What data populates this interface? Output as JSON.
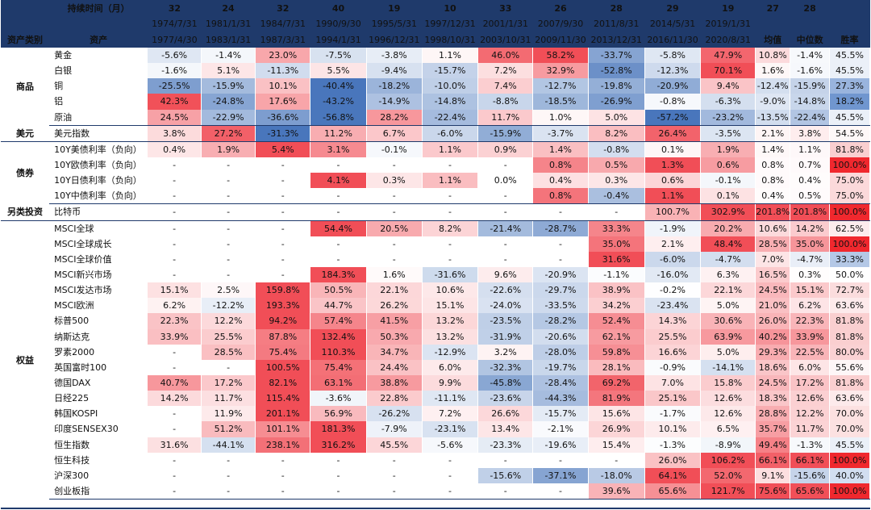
{
  "header": {
    "holding_label": "持续时间（月）",
    "asset_class_label": "资产类别",
    "asset_label": "资产",
    "durations": [
      "32",
      "24",
      "32",
      "40",
      "19",
      "10",
      "33",
      "26",
      "28",
      "29",
      "19"
    ],
    "start_dates": [
      "1974/7/31",
      "1981/1/31",
      "1984/7/31",
      "1990/9/30",
      "1995/5/31",
      "1997/12/31",
      "2001/1/31",
      "2007/9/30",
      "2011/8/31",
      "2014/5/31",
      "2019/1/31"
    ],
    "end_dates": [
      "1977/4/30",
      "1983/1/31",
      "1987/3/31",
      "1994/1/31",
      "1996/12/31",
      "1998/10/31",
      "2003/10/31",
      "2009/11/30",
      "2013/12/31",
      "2016/11/30",
      "2020/8/31"
    ],
    "stat_top": [
      "27",
      "28",
      ""
    ],
    "stat_labels": [
      "均值",
      "中位数",
      "胜率"
    ]
  },
  "groups": [
    {
      "name": "商品",
      "rows": [
        {
          "asset": "黄金",
          "values": [
            "-5.6%",
            "-1.4%",
            "23.0%",
            "-7.5%",
            "-3.8%",
            "1.1%",
            "46.0%",
            "58.2%",
            "-33.7%",
            "-5.8%",
            "47.9%"
          ],
          "stats": [
            "10.8%",
            "-1.4%",
            "45.5%"
          ]
        },
        {
          "asset": "白银",
          "values": [
            "-1.6%",
            "5.1%",
            "-11.3%",
            "5.5%",
            "-9.4%",
            "-15.7%",
            "7.2%",
            "32.9%",
            "-52.8%",
            "-12.3%",
            "70.1%"
          ],
          "stats": [
            "1.6%",
            "-1.6%",
            "45.5%"
          ]
        },
        {
          "asset": "铜",
          "values": [
            "-25.5%",
            "-15.9%",
            "10.1%",
            "-40.4%",
            "-18.2%",
            "-10.0%",
            "7.4%",
            "-12.7%",
            "-19.8%",
            "-20.9%",
            "9.4%"
          ],
          "stats": [
            "-12.4%",
            "-15.9%",
            "27.3%"
          ]
        },
        {
          "asset": "铝",
          "values": [
            "42.3%",
            "-24.8%",
            "17.6%",
            "-43.2%",
            "-14.9%",
            "-14.8%",
            "-8.8%",
            "-18.5%",
            "-26.9%",
            "-0.8%",
            "-6.3%"
          ],
          "stats": [
            "-9.0%",
            "-14.8%",
            "18.2%"
          ]
        },
        {
          "asset": "原油",
          "values": [
            "24.5%",
            "-22.9%",
            "-36.6%",
            "-56.8%",
            "28.2%",
            "-22.4%",
            "11.7%",
            "1.0%",
            "5.0%",
            "-57.2%",
            "-23.2%"
          ],
          "stats": [
            "-13.5%",
            "-22.4%",
            "45.5%"
          ]
        }
      ]
    },
    {
      "name": "美元",
      "rows": [
        {
          "asset": "美元指数",
          "values": [
            "3.8%",
            "27.2%",
            "-31.3%",
            "11.2%",
            "6.7%",
            "-6.0%",
            "-15.9%",
            "-3.7%",
            "8.2%",
            "26.4%",
            "-3.5%"
          ],
          "stats": [
            "2.1%",
            "3.8%",
            "54.5%"
          ]
        }
      ]
    },
    {
      "name": "债券",
      "rows": [
        {
          "asset": "10Y美债利率（负向）",
          "values": [
            "0.4%",
            "1.9%",
            "5.4%",
            "3.1%",
            "-0.1%",
            "1.1%",
            "0.9%",
            "1.4%",
            "-0.8%",
            "0.1%",
            "1.9%"
          ],
          "stats": [
            "1.4%",
            "1.1%",
            "81.8%"
          ]
        },
        {
          "asset": "10Y欧债利率（负向）",
          "values": [
            "-",
            "-",
            "-",
            "-",
            "-",
            "-",
            "-",
            "0.8%",
            "0.5%",
            "1.3%",
            "0.6%"
          ],
          "stats": [
            "0.8%",
            "0.7%",
            "100.0%"
          ]
        },
        {
          "asset": "10Y日债利率（负向）",
          "values": [
            "-",
            "-",
            "-",
            "4.1%",
            "0.3%",
            "1.1%",
            "0.0%",
            "0.4%",
            "0.3%",
            "0.6%",
            "-0.1%"
          ],
          "stats": [
            "0.8%",
            "0.4%",
            "75.0%"
          ]
        },
        {
          "asset": "10Y中债利率（负向）",
          "values": [
            "-",
            "-",
            "-",
            "-",
            "-",
            "-",
            "-",
            "0.8%",
            "-0.4%",
            "1.1%",
            "0.1%"
          ],
          "stats": [
            "0.4%",
            "0.5%",
            "75.0%"
          ]
        }
      ]
    },
    {
      "name": "另类投资",
      "rows": [
        {
          "asset": "比特币",
          "values": [
            "-",
            "-",
            "-",
            "-",
            "-",
            "-",
            "-",
            "-",
            "-",
            "100.7%",
            "302.9%"
          ],
          "stats": [
            "201.8%",
            "201.8%",
            "100.0%"
          ]
        }
      ]
    },
    {
      "name": "权益",
      "rows": [
        {
          "asset": "MSCI全球",
          "values": [
            "-",
            "-",
            "-",
            "54.4%",
            "20.5%",
            "8.2%",
            "-21.4%",
            "-28.7%",
            "33.3%",
            "-1.9%",
            "20.2%"
          ],
          "stats": [
            "10.6%",
            "14.2%",
            "62.5%"
          ]
        },
        {
          "asset": "MSCI全球成长",
          "values": [
            "-",
            "-",
            "-",
            "-",
            "-",
            "-",
            "-",
            "-",
            "35.0%",
            "2.1%",
            "48.4%"
          ],
          "stats": [
            "28.5%",
            "35.0%",
            "100.0%"
          ]
        },
        {
          "asset": "MSCI全球价值",
          "values": [
            "-",
            "-",
            "-",
            "-",
            "-",
            "-",
            "-",
            "-",
            "31.6%",
            "-6.0%",
            "-4.7%"
          ],
          "stats": [
            "7.0%",
            "-4.7%",
            "33.3%"
          ]
        },
        {
          "asset": "MSCI新兴市场",
          "values": [
            "-",
            "-",
            "-",
            "184.3%",
            "1.6%",
            "-31.6%",
            "9.6%",
            "-20.9%",
            "-1.1%",
            "-16.0%",
            "6.3%"
          ],
          "stats": [
            "16.5%",
            "0.3%",
            "50.0%"
          ]
        },
        {
          "asset": "MSCI发达市场",
          "values": [
            "15.1%",
            "2.5%",
            "159.8%",
            "50.5%",
            "22.1%",
            "10.6%",
            "-22.6%",
            "-29.7%",
            "38.9%",
            "-0.2%",
            "22.1%"
          ],
          "stats": [
            "24.5%",
            "15.1%",
            "72.7%"
          ]
        },
        {
          "asset": "MSCI欧洲",
          "values": [
            "6.2%",
            "-12.2%",
            "193.3%",
            "44.7%",
            "26.2%",
            "15.1%",
            "-24.0%",
            "-33.5%",
            "34.2%",
            "-23.4%",
            "5.0%"
          ],
          "stats": [
            "21.0%",
            "6.2%",
            "63.6%"
          ]
        },
        {
          "asset": "标普500",
          "values": [
            "22.3%",
            "12.2%",
            "94.2%",
            "57.4%",
            "41.5%",
            "13.2%",
            "-23.5%",
            "-28.2%",
            "52.4%",
            "14.3%",
            "30.6%"
          ],
          "stats": [
            "26.0%",
            "22.3%",
            "81.8%"
          ]
        },
        {
          "asset": "纳斯达克",
          "values": [
            "33.9%",
            "25.5%",
            "87.8%",
            "132.4%",
            "50.3%",
            "13.2%",
            "-31.9%",
            "-20.6%",
            "62.1%",
            "25.5%",
            "63.9%"
          ],
          "stats": [
            "40.2%",
            "33.9%",
            "81.8%"
          ]
        },
        {
          "asset": "罗素2000",
          "values": [
            "-",
            "28.5%",
            "75.4%",
            "110.3%",
            "34.7%",
            "-12.9%",
            "3.2%",
            "-28.0%",
            "59.8%",
            "16.6%",
            "5.0%"
          ],
          "stats": [
            "29.3%",
            "22.5%",
            "80.0%"
          ]
        },
        {
          "asset": "英国富时100",
          "values": [
            "-",
            "-",
            "100.5%",
            "75.4%",
            "24.4%",
            "6.0%",
            "-32.3%",
            "-19.7%",
            "28.1%",
            "-0.9%",
            "-14.1%"
          ],
          "stats": [
            "18.6%",
            "6.0%",
            "55.6%"
          ]
        },
        {
          "asset": "德国DAX",
          "values": [
            "40.7%",
            "17.2%",
            "82.1%",
            "63.1%",
            "38.8%",
            "9.9%",
            "-45.8%",
            "-28.4%",
            "69.2%",
            "7.0%",
            "15.8%"
          ],
          "stats": [
            "24.5%",
            "17.2%",
            "81.8%"
          ]
        },
        {
          "asset": "日经225",
          "values": [
            "14.2%",
            "11.7%",
            "115.4%",
            "-3.6%",
            "22.8%",
            "-11.1%",
            "-23.6%",
            "-44.3%",
            "81.9%",
            "25.1%",
            "12.6%"
          ],
          "stats": [
            "18.3%",
            "12.6%",
            "63.6%"
          ]
        },
        {
          "asset": "韩国KOSPI",
          "values": [
            "-",
            "11.9%",
            "201.1%",
            "56.9%",
            "-26.2%",
            "7.2%",
            "26.6%",
            "-15.7%",
            "15.6%",
            "-1.7%",
            "12.6%"
          ],
          "stats": [
            "28.8%",
            "12.2%",
            "70.0%"
          ]
        },
        {
          "asset": "印度SENSEX30",
          "values": [
            "-",
            "51.2%",
            "101.1%",
            "181.3%",
            "-7.9%",
            "-23.1%",
            "13.4%",
            "-2.1%",
            "26.9%",
            "10.1%",
            "6.5%"
          ],
          "stats": [
            "35.7%",
            "11.7%",
            "70.0%"
          ]
        },
        {
          "asset": "恒生指数",
          "values": [
            "31.6%",
            "-44.1%",
            "238.1%",
            "316.2%",
            "45.5%",
            "-5.6%",
            "-23.3%",
            "-19.6%",
            "15.4%",
            "-1.3%",
            "-8.9%"
          ],
          "stats": [
            "49.4%",
            "-1.3%",
            "45.5%"
          ]
        },
        {
          "asset": "恒生科技",
          "values": [
            "-",
            "-",
            "-",
            "-",
            "-",
            "-",
            "-",
            "-",
            "-",
            "26.0%",
            "106.2%"
          ],
          "stats": [
            "66.1%",
            "66.1%",
            "100.0%"
          ]
        },
        {
          "asset": "沪深300",
          "values": [
            "-",
            "-",
            "-",
            "-",
            "-",
            "-",
            "-15.6%",
            "-37.1%",
            "-18.0%",
            "64.1%",
            "52.0%"
          ],
          "stats": [
            "9.1%",
            "-15.6%",
            "40.0%"
          ]
        },
        {
          "asset": "创业板指",
          "values": [
            "-",
            "-",
            "-",
            "-",
            "-",
            "-",
            "-",
            "-",
            "39.6%",
            "65.6%",
            "121.7%"
          ],
          "stats": [
            "75.6%",
            "65.6%",
            "100.0%"
          ]
        }
      ]
    }
  ],
  "colors": {
    "header_bg": "#1f3a6b",
    "positive": "#f0454e",
    "negative": "#3f6fb8",
    "win_rate_max": "#f0282e"
  }
}
